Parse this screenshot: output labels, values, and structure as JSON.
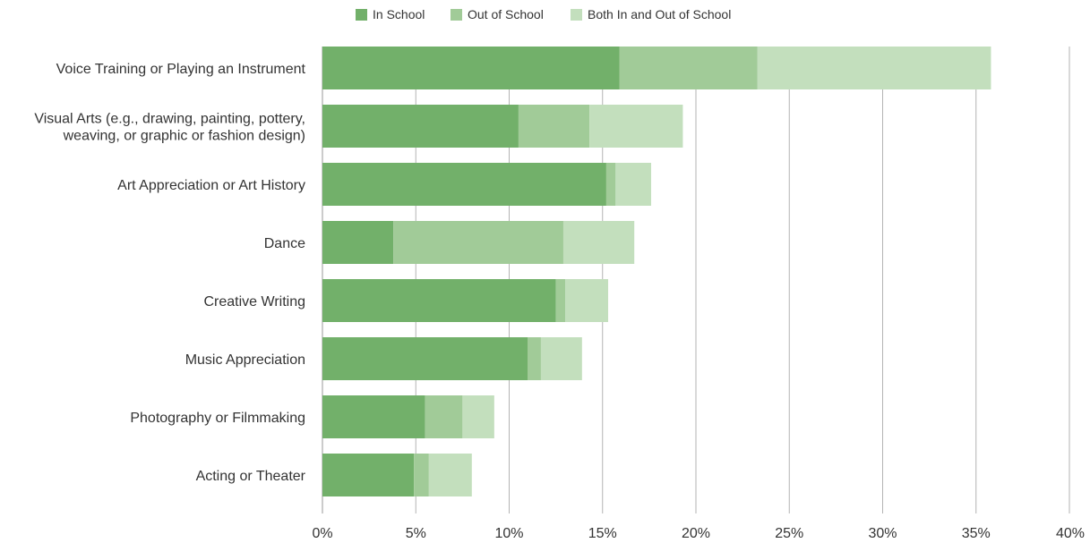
{
  "chart_data": {
    "type": "bar",
    "orientation": "horizontal",
    "stacked": true,
    "title": "",
    "xlabel": "",
    "ylabel": "",
    "xlim": [
      0,
      40
    ],
    "x_ticks": [
      "0%",
      "5%",
      "10%",
      "15%",
      "20%",
      "25%",
      "30%",
      "35%",
      "40%"
    ],
    "x_tick_values": [
      0,
      5,
      10,
      15,
      20,
      25,
      30,
      35,
      40
    ],
    "grid": "vertical",
    "legend_position": "top-center",
    "categories": [
      [
        "Voice Training or Playing an Instrument"
      ],
      [
        "Visual Arts (e.g., drawing, painting, pottery,",
        "weaving, or graphic or fashion design)"
      ],
      [
        "Art Appreciation or Art History"
      ],
      [
        "Dance"
      ],
      [
        "Creative Writing"
      ],
      [
        "Music Appreciation"
      ],
      [
        "Photography or Filmmaking"
      ],
      [
        "Acting or Theater"
      ]
    ],
    "series": [
      {
        "name": "In School",
        "color": "#72b06a",
        "values": [
          15.9,
          10.5,
          15.2,
          3.8,
          12.5,
          11.0,
          5.5,
          4.9
        ]
      },
      {
        "name": "Out of School",
        "color": "#a1cb98",
        "values": [
          7.4,
          3.8,
          0.5,
          9.1,
          0.5,
          0.7,
          2.0,
          0.8
        ]
      },
      {
        "name": "Both In and Out of School",
        "color": "#c3dfbd",
        "values": [
          12.5,
          5.0,
          1.9,
          3.8,
          2.3,
          2.2,
          1.7,
          2.3
        ]
      }
    ],
    "gridline_color": "#b3b3b3"
  }
}
